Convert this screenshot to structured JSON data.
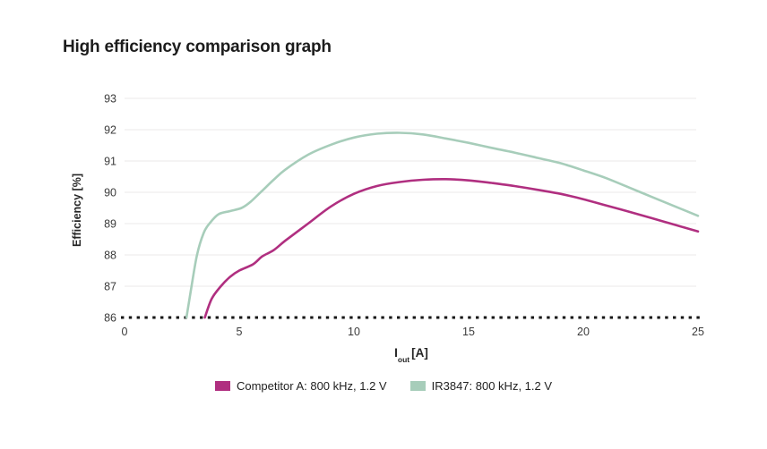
{
  "title": "High efficiency comparison graph",
  "axis": {
    "x_main": "I",
    "x_sub": "out",
    "x_unit": "[A]",
    "y_title": "Efficiency [%]"
  },
  "chart_data": {
    "type": "line",
    "title": "High efficiency comparison graph",
    "xlabel": "Iout [A]",
    "ylabel": "Efficiency [%]",
    "xlim": [
      0,
      25
    ],
    "ylim": [
      86,
      93
    ],
    "xticks": [
      0,
      5,
      10,
      15,
      20,
      25
    ],
    "yticks": [
      86,
      87,
      88,
      89,
      90,
      91,
      92,
      93
    ],
    "grid": "horizontal-light",
    "gridline_color": "#ebe8e8",
    "baseline": {
      "y": 86,
      "style": "dotted",
      "color": "#161616"
    },
    "legend_position": "bottom-center",
    "series": [
      {
        "name": "Competitor A: 800 kHz, 1.2 V",
        "color": "#b02f80",
        "points": [
          [
            3.5,
            86.0
          ],
          [
            3.8,
            86.6
          ],
          [
            4.2,
            87.0
          ],
          [
            4.6,
            87.3
          ],
          [
            5.0,
            87.5
          ],
          [
            5.6,
            87.7
          ],
          [
            6.0,
            87.95
          ],
          [
            6.5,
            88.15
          ],
          [
            7.0,
            88.45
          ],
          [
            8.0,
            89.0
          ],
          [
            9.0,
            89.55
          ],
          [
            10.0,
            89.95
          ],
          [
            11.0,
            90.2
          ],
          [
            12.0,
            90.33
          ],
          [
            13.0,
            90.4
          ],
          [
            14.0,
            90.42
          ],
          [
            15.0,
            90.38
          ],
          [
            16.0,
            90.3
          ],
          [
            17.0,
            90.2
          ],
          [
            18.0,
            90.08
          ],
          [
            19.0,
            89.95
          ],
          [
            20.0,
            89.78
          ],
          [
            21.0,
            89.58
          ],
          [
            22.0,
            89.38
          ],
          [
            23.0,
            89.17
          ],
          [
            24.0,
            88.96
          ],
          [
            25.0,
            88.75
          ]
        ]
      },
      {
        "name": "IR3847: 800 kHz, 1.2 V",
        "color": "#a7cdba",
        "points": [
          [
            2.7,
            86.0
          ],
          [
            2.9,
            86.9
          ],
          [
            3.16,
            88.0
          ],
          [
            3.45,
            88.7
          ],
          [
            3.7,
            89.0
          ],
          [
            4.1,
            89.3
          ],
          [
            4.6,
            89.4
          ],
          [
            5.1,
            89.5
          ],
          [
            5.5,
            89.7
          ],
          [
            6.0,
            90.05
          ],
          [
            6.5,
            90.4
          ],
          [
            7.0,
            90.72
          ],
          [
            8.0,
            91.2
          ],
          [
            9.0,
            91.52
          ],
          [
            10.0,
            91.75
          ],
          [
            11.0,
            91.87
          ],
          [
            12.0,
            91.9
          ],
          [
            13.0,
            91.85
          ],
          [
            14.0,
            91.72
          ],
          [
            15.0,
            91.58
          ],
          [
            16.0,
            91.42
          ],
          [
            17.0,
            91.27
          ],
          [
            18.0,
            91.1
          ],
          [
            19.0,
            90.93
          ],
          [
            20.0,
            90.7
          ],
          [
            21.0,
            90.45
          ],
          [
            22.0,
            90.15
          ],
          [
            23.0,
            89.85
          ],
          [
            24.0,
            89.55
          ],
          [
            25.0,
            89.25
          ]
        ]
      }
    ]
  }
}
